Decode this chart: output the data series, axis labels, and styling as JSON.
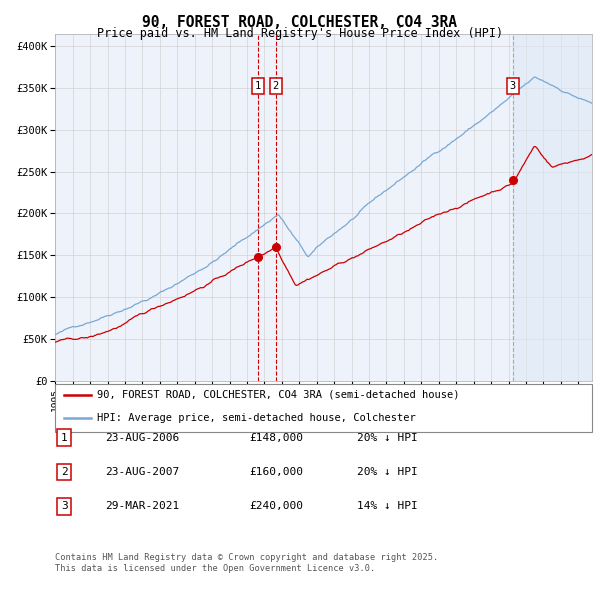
{
  "title": "90, FOREST ROAD, COLCHESTER, CO4 3RA",
  "subtitle": "Price paid vs. HM Land Registry's House Price Index (HPI)",
  "title_fontsize": 10.5,
  "subtitle_fontsize": 8.5,
  "background_color": "#ffffff",
  "plot_bg_color": "#eef2fb",
  "grid_color": "#cccccc",
  "ylabel_ticks": [
    "£0",
    "£50K",
    "£100K",
    "£150K",
    "£200K",
    "£250K",
    "£300K",
    "£350K",
    "£400K"
  ],
  "ytick_values": [
    0,
    50000,
    100000,
    150000,
    200000,
    250000,
    300000,
    350000,
    400000
  ],
  "ylim": [
    0,
    415000
  ],
  "xlim_start": 1995.0,
  "xlim_end": 2025.8,
  "sale_events": [
    {
      "id": 1,
      "date_num": 2006.64,
      "price": 148000,
      "label": "23-AUG-2006",
      "price_str": "£148,000",
      "pct": "20%"
    },
    {
      "id": 2,
      "date_num": 2007.64,
      "price": 160000,
      "label": "23-AUG-2007",
      "price_str": "£160,000",
      "pct": "20%"
    },
    {
      "id": 3,
      "date_num": 2021.24,
      "price": 240000,
      "label": "29-MAR-2021",
      "price_str": "£240,000",
      "pct": "14%"
    }
  ],
  "legend_line1": "90, FOREST ROAD, COLCHESTER, CO4 3RA (semi-detached house)",
  "legend_line2": "HPI: Average price, semi-detached house, Colchester",
  "footnote": "Contains HM Land Registry data © Crown copyright and database right 2025.\nThis data is licensed under the Open Government Licence v3.0.",
  "line_red": "#cc0000",
  "line_blue": "#7aa8d2",
  "marker_red": "#cc0000",
  "shade_blue_color": "#dce8f5",
  "shade_blue_alpha": 0.5,
  "dashed_vline_color": "#cc0000",
  "dashed_vline3_color": "#aaaaaa",
  "box_edge_color": "#cc0000"
}
